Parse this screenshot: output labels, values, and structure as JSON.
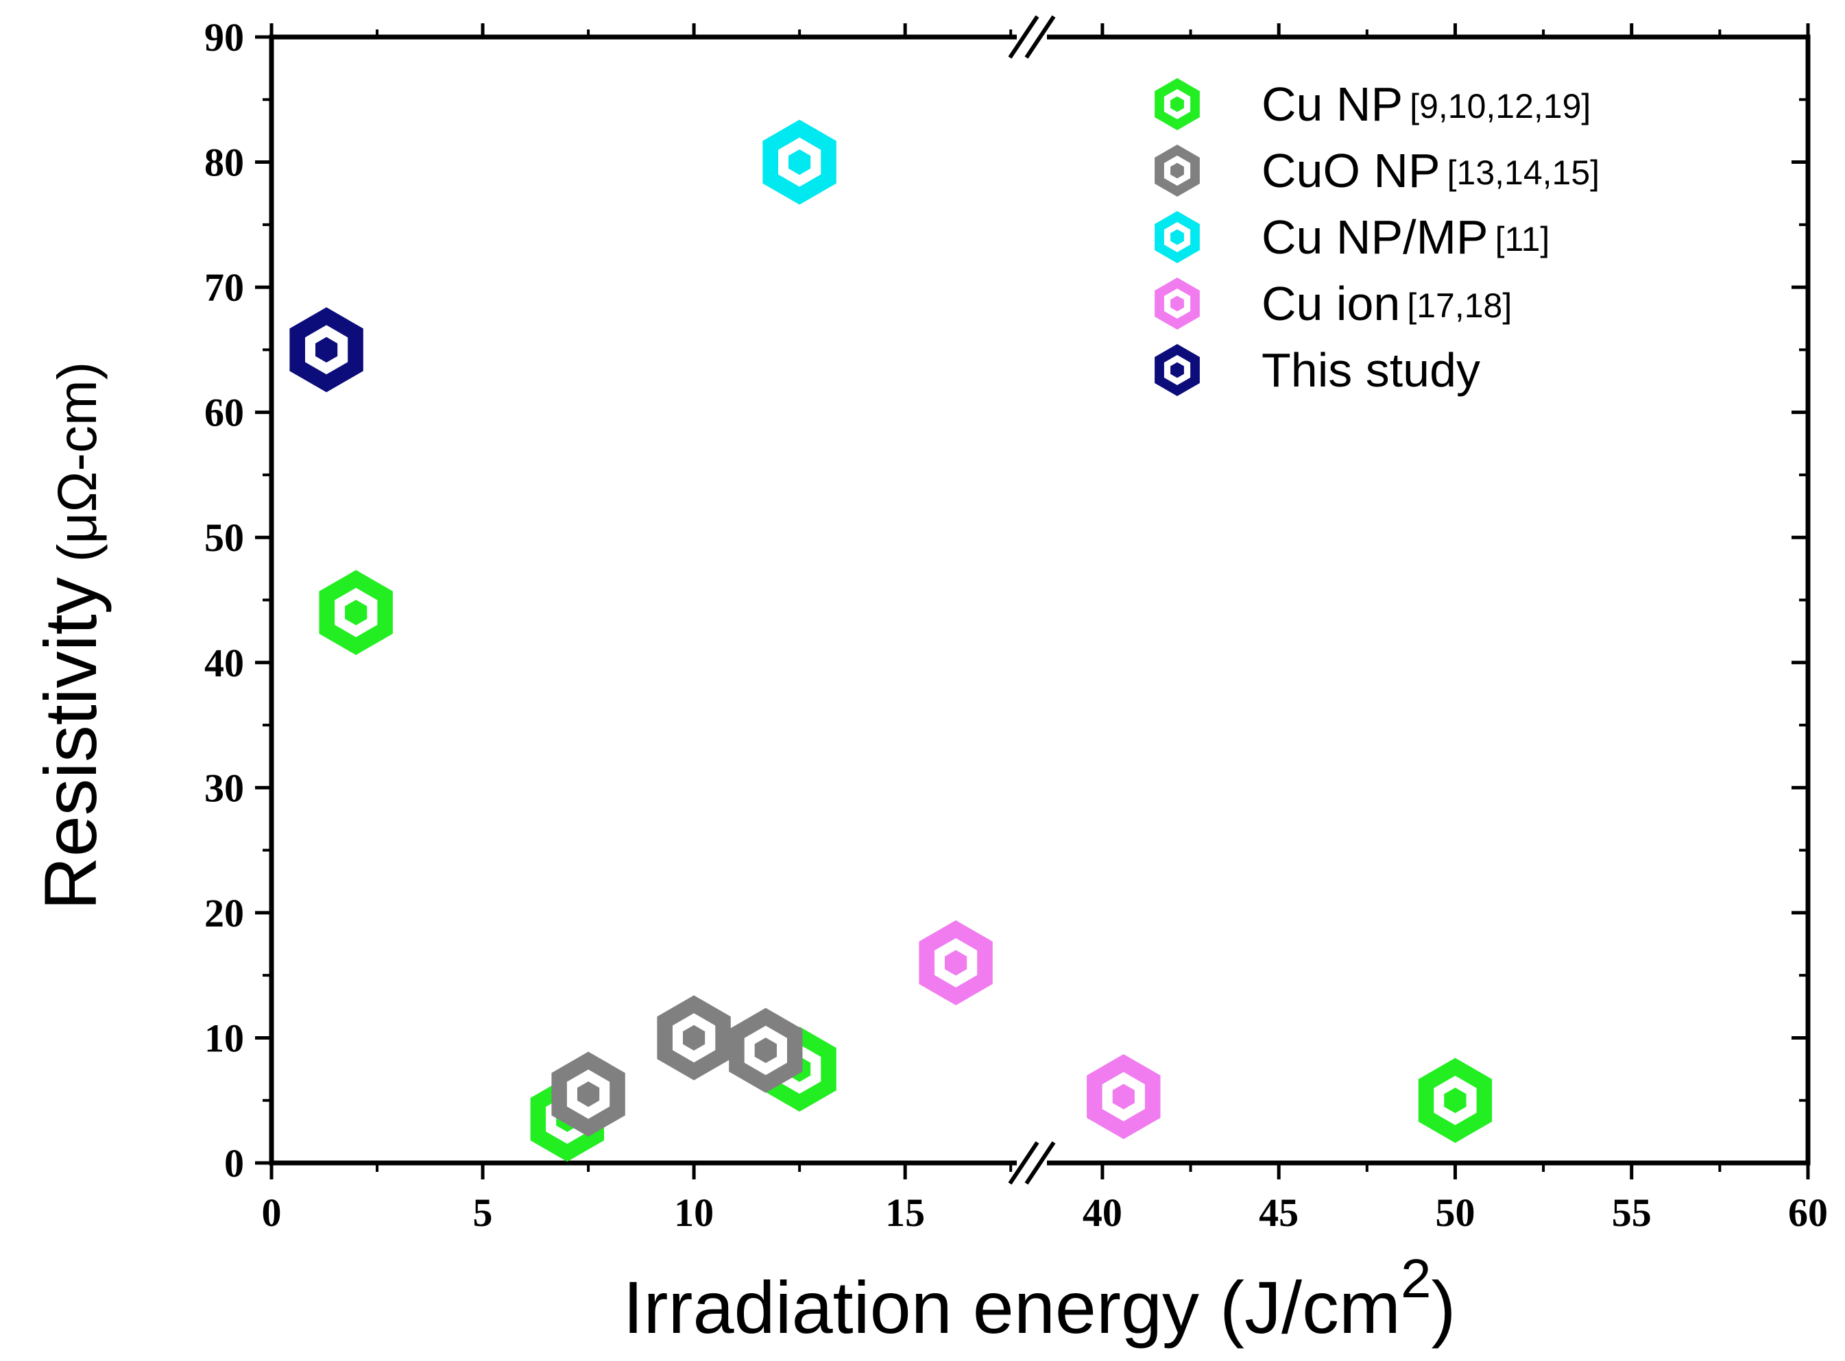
{
  "chart_data": {
    "type": "scatter",
    "title": "",
    "xlabel": "Irradiation energy (J/cm",
    "xlabel_sup": "2",
    "xlabel_close": ")",
    "ylabel": "Resistivity",
    "ylabel_unit": "(μΩ-cm)",
    "x_axis_break": true,
    "x_segments": [
      {
        "range": [
          0,
          18
        ],
        "ticks": [
          0,
          5,
          10,
          15
        ]
      },
      {
        "range": [
          38,
          60
        ],
        "ticks": [
          40,
          45,
          50,
          55,
          60
        ]
      }
    ],
    "ylim": [
      0,
      90
    ],
    "yticks": [
      0,
      10,
      20,
      30,
      40,
      50,
      60,
      70,
      80,
      90
    ],
    "legend_position": "top-right",
    "series": [
      {
        "name": "Cu NP",
        "ref": "[9,10,12,19]",
        "color": "#22ee22",
        "points": [
          {
            "x": 2,
            "y": 44
          },
          {
            "x": 7,
            "y": 3.5
          },
          {
            "x": 12.5,
            "y": 7.5
          },
          {
            "x": 50,
            "y": 5
          }
        ]
      },
      {
        "name": "CuO NP",
        "ref": "[13,14,15]",
        "color": "#808080",
        "points": [
          {
            "x": 7.5,
            "y": 5.5
          },
          {
            "x": 10,
            "y": 10
          },
          {
            "x": 11.7,
            "y": 9
          }
        ]
      },
      {
        "name": "Cu NP/MP",
        "ref": "[11]",
        "color": "#00e8f0",
        "points": [
          {
            "x": 12.5,
            "y": 80
          }
        ]
      },
      {
        "name": "Cu ion",
        "ref": "[17,18]",
        "color": "#f07cf0",
        "points": [
          {
            "x": 16.2,
            "y": 16
          },
          {
            "x": 40.6,
            "y": 5.3
          }
        ]
      },
      {
        "name": "This study",
        "ref": "",
        "color": "#0c0c7a",
        "points": [
          {
            "x": 1.3,
            "y": 65
          }
        ]
      }
    ]
  }
}
